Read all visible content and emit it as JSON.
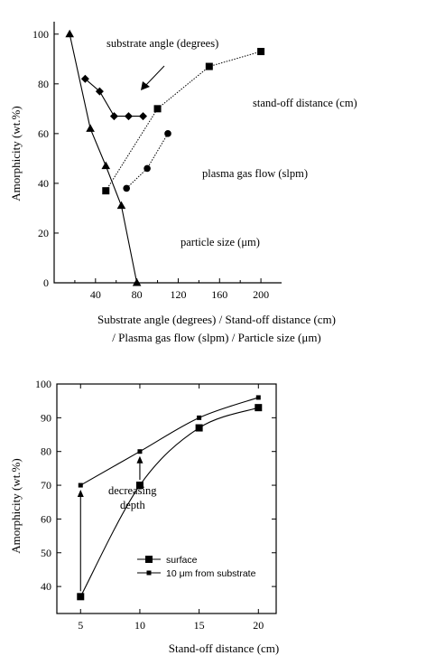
{
  "chart_data": [
    {
      "type": "line",
      "ylabel": "Amorphicity (wt.%)",
      "xlabel_lines": [
        "Substrate angle (degrees) / Stand-off distance (cm)",
        "/ Plasma gas flow (slpm) / Particle size (μm)"
      ],
      "xlim": [
        0,
        220
      ],
      "ylim": [
        0,
        105
      ],
      "x_ticks": [
        40,
        80,
        120,
        160,
        200
      ],
      "y_ticks": [
        0,
        20,
        40,
        60,
        80,
        100
      ],
      "grid": false,
      "series": [
        {
          "name": "substrate angle (degrees)",
          "marker": "diamond",
          "style": "solid",
          "x": [
            30,
            44,
            58,
            72,
            86
          ],
          "y": [
            82,
            77,
            67,
            67,
            67
          ]
        },
        {
          "name": "stand-off distance (cm)",
          "marker": "square",
          "style": "dotted",
          "x": [
            50,
            100,
            150,
            200
          ],
          "y": [
            37,
            70,
            87,
            93
          ]
        },
        {
          "name": "plasma gas flow (slpm)",
          "marker": "circle",
          "style": "dotted",
          "x": [
            70,
            90,
            110
          ],
          "y": [
            38,
            46,
            60
          ]
        },
        {
          "name": "particle size (μm)",
          "marker": "triangle",
          "style": "solid",
          "x": [
            15,
            35,
            50,
            65,
            80
          ],
          "y": [
            100,
            62,
            47,
            31,
            0
          ]
        }
      ],
      "annotations": [
        "substrate angle (degrees)",
        "stand-off distance (cm)",
        "plasma gas flow (slpm)",
        "particle size (μm)"
      ]
    },
    {
      "type": "line",
      "xlabel": "Stand-off distance  (cm)",
      "ylabel": "Amorphicity   (wt.%)",
      "xlim": [
        3,
        21.5
      ],
      "ylim": [
        32,
        100
      ],
      "x_ticks": [
        5,
        10,
        15,
        20
      ],
      "y_ticks": [
        40,
        50,
        60,
        70,
        80,
        90,
        100
      ],
      "grid": false,
      "legend_position": "lower-center",
      "series": [
        {
          "name": "surface",
          "marker": "square-large",
          "x": [
            5,
            10,
            15,
            20
          ],
          "y": [
            37,
            70,
            87,
            93
          ]
        },
        {
          "name": "10 μm from substrate",
          "marker": "square-small",
          "x": [
            5,
            10,
            15,
            20
          ],
          "y": [
            70,
            80,
            90,
            96
          ]
        }
      ],
      "annotation_lines": [
        "decreasing",
        "depth"
      ]
    }
  ]
}
